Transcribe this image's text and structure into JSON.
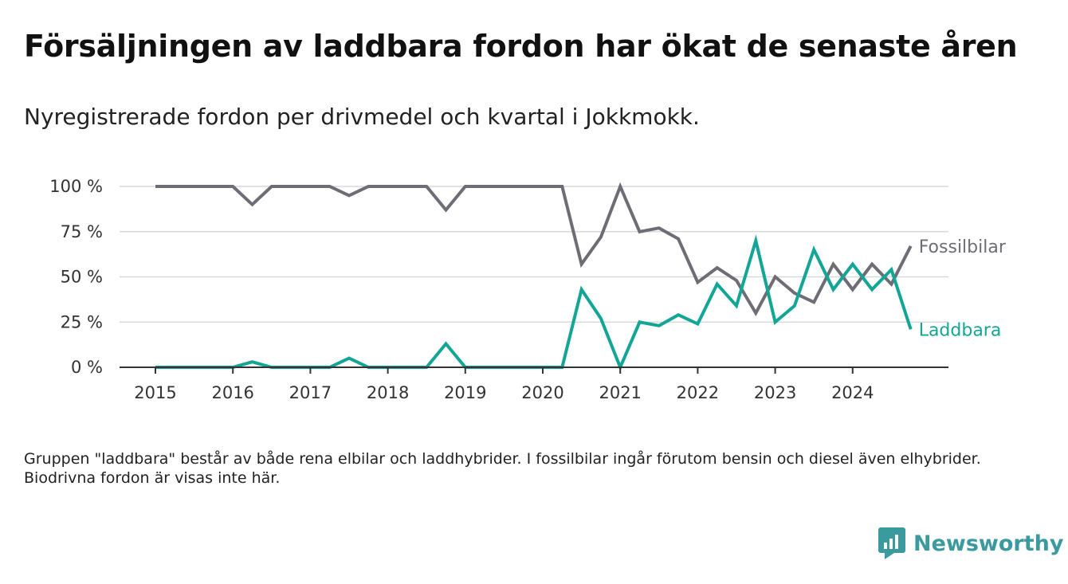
{
  "title": "Försäljningen av laddbara fordon har ökat de senaste åren",
  "subtitle": "Nyregistrerade fordon per drivmedel och kvartal i Jokkmokk.",
  "note": "Gruppen \"laddbara\" består av både rena elbilar och laddhybrider. I fossilbilar ingår förutom bensin och diesel även elhybrider. Biodrivna fordon är visas inte här.",
  "brand": "Newsworthy",
  "colors": {
    "fossil": "#6e6d75",
    "laddbara": "#13a595",
    "grid": "#d9d9d9",
    "axis": "#333333",
    "brand": "#3a9a9e"
  },
  "chart_data": {
    "type": "line",
    "x_ticks": [
      "2015",
      "2016",
      "2017",
      "2018",
      "2019",
      "2020",
      "2021",
      "2022",
      "2023",
      "2024"
    ],
    "y_ticks": [
      "0 %",
      "25 %",
      "50 %",
      "75 %",
      "100 %"
    ],
    "ylim": [
      0,
      100
    ],
    "x_start_year": 2015,
    "quarters": 40,
    "series": [
      {
        "name": "Fossilbilar",
        "color": "#6e6d75",
        "values": [
          100,
          100,
          100,
          100,
          100,
          90,
          100,
          100,
          100,
          100,
          95,
          100,
          100,
          100,
          100,
          87,
          100,
          100,
          100,
          100,
          100,
          100,
          57,
          72,
          100,
          75,
          77,
          71,
          47,
          55,
          48,
          30,
          50,
          41,
          36,
          57,
          43,
          57,
          46,
          67
        ]
      },
      {
        "name": "Laddbara",
        "color": "#13a595",
        "values": [
          0,
          0,
          0,
          0,
          0,
          3,
          0,
          0,
          0,
          0,
          5,
          0,
          0,
          0,
          0,
          13,
          0,
          0,
          0,
          0,
          0,
          0,
          43,
          27,
          0,
          25,
          23,
          29,
          24,
          46,
          34,
          70,
          25,
          34,
          65,
          43,
          57,
          43,
          54,
          21
        ]
      }
    ]
  }
}
